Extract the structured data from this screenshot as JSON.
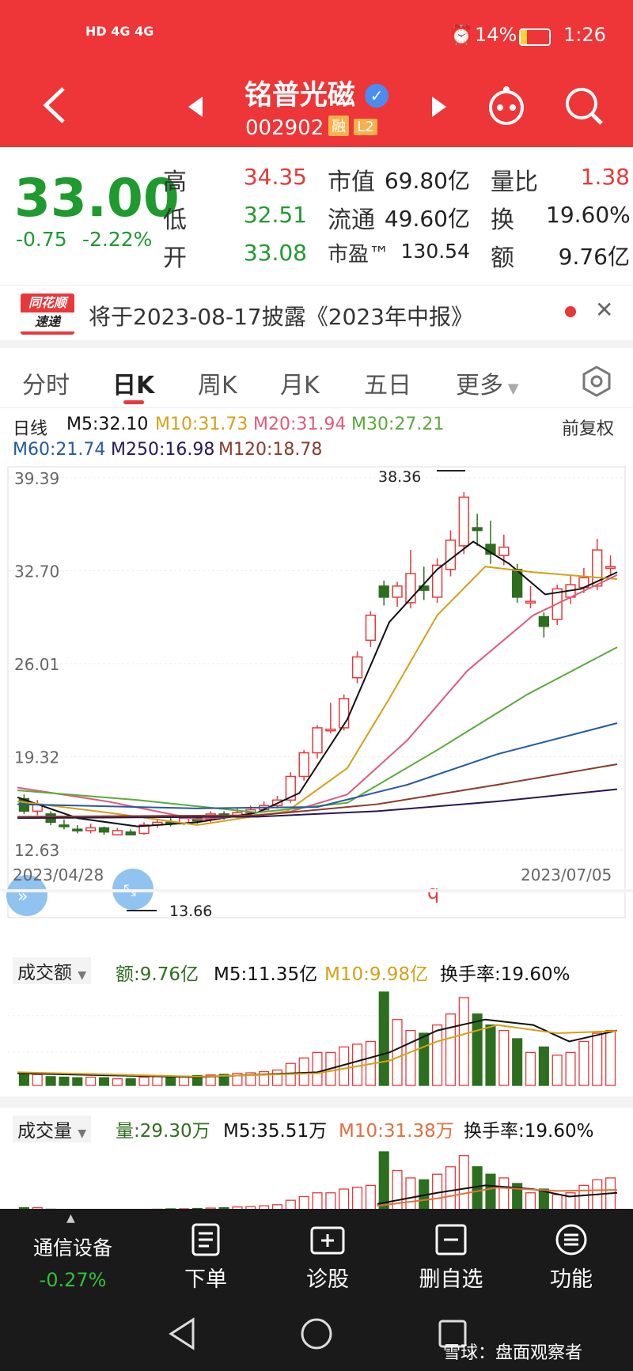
{
  "status_bar": {
    "left_icons": "HD 4G 4G",
    "battery": "14%",
    "time": "1:26"
  },
  "header": {
    "title": "铭普光磁",
    "code": "002902",
    "tag1": "融",
    "tag2": "L2"
  },
  "quote": {
    "price": "33.00",
    "change": "-0.75",
    "change_pct": "-2.22%",
    "high_label": "高",
    "high": "34.35",
    "low_label": "低",
    "low": "32.51",
    "open_label": "开",
    "open": "33.08",
    "mktcap_label": "市值",
    "mktcap": "69.80亿",
    "float_label": "流通",
    "float": "49.60亿",
    "pe_label": "市盈™",
    "pe": "130.54",
    "volratio_label": "量比",
    "volratio": "1.38",
    "turnover_label": "换",
    "turnover": "19.60%",
    "amount_label": "额",
    "amount": "9.76亿"
  },
  "notice": {
    "logo_top": "同花顺",
    "logo_bottom": "速递",
    "text": "将于2023-08-17披露《2023年中报》"
  },
  "tabs": [
    "分时",
    "日K",
    "周K",
    "月K",
    "五日",
    "更多"
  ],
  "kline": {
    "label": "日线",
    "ma5": "M5:32.10",
    "ma10": "M10:31.73",
    "ma20": "M20:31.94",
    "ma30": "M30:27.21",
    "ma60": "M60:21.74",
    "ma250": "M250:16.98",
    "ma120": "M120:18.78",
    "adjust": "前复权",
    "y_ticks": [
      "39.39",
      "32.70",
      "26.01",
      "19.32",
      "12.63"
    ],
    "max_label": "38.36",
    "min_label": "13.66",
    "date_start": "2023/04/28",
    "date_end": "2023/07/05",
    "marker": "q"
  },
  "amount_panel": {
    "title": "成交额",
    "value": "额:9.76亿",
    "m5": "M5:11.35亿",
    "m10": "M10:9.98亿",
    "turnover": "换手率:19.60%"
  },
  "volume_panel": {
    "title": "成交量",
    "value": "量:29.30万",
    "m5": "M5:35.51万",
    "m10": "M10:31.38万",
    "turnover": "换手率:19.60%"
  },
  "bottom_bar": {
    "sector": "通信设备",
    "sector_change": "-0.27%",
    "order": "下单",
    "diagnose": "诊股",
    "remove": "删自选",
    "functions": "功能"
  },
  "watermark": "雪球：盘面观察者",
  "colors": {
    "up": "#e8383a",
    "down": "#2d6e1f",
    "ma5": "#111111",
    "ma10": "#d4a017",
    "ma20": "#e05a7a",
    "ma30": "#5aaa3c",
    "ma60": "#245aa0",
    "ma250": "#2a1654",
    "ma120": "#8a3a2a"
  }
}
